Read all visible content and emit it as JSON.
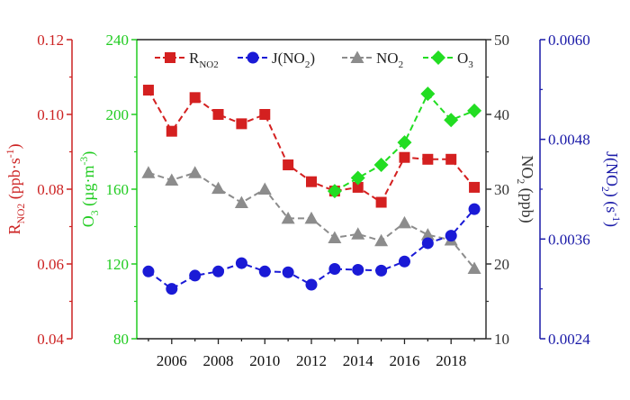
{
  "chart_data": {
    "type": "line",
    "x": [
      2005,
      2006,
      2007,
      2008,
      2009,
      2010,
      2011,
      2012,
      2013,
      2014,
      2015,
      2016,
      2017,
      2018,
      2019
    ],
    "xlim": [
      2004.5,
      2019.5
    ],
    "xticks": [
      "2006",
      "2008",
      "2010",
      "2012",
      "2014",
      "2016",
      "2018"
    ],
    "grid": false,
    "legend_position": "top",
    "axes": [
      {
        "id": "rno2",
        "label_main": "R",
        "label_sub": "NO2",
        "label_unit": " (ppb·s",
        "label_sup": "-1",
        "label_close": ")",
        "ylim": [
          0.04,
          0.12
        ],
        "ticks": [
          "0.04",
          "0.06",
          "0.08",
          "0.10",
          "0.12"
        ],
        "color": "#cc2222"
      },
      {
        "id": "o3",
        "label_main": "O",
        "label_sub": "3",
        "label_unit": " (µg·m",
        "label_sup": "-3",
        "label_close": ")",
        "ylim": [
          80,
          240
        ],
        "ticks": [
          "80",
          "120",
          "160",
          "200",
          "240"
        ],
        "color": "#22cc22"
      },
      {
        "id": "no2",
        "label_main": "NO",
        "label_sub": "2",
        "label_unit": " (ppb)",
        "label_sup": "",
        "label_close": "",
        "ylim": [
          10,
          50
        ],
        "ticks": [
          "10",
          "20",
          "30",
          "40",
          "50"
        ],
        "color": "#333333"
      },
      {
        "id": "jno2",
        "label_main": "J(NO",
        "label_sub": "2",
        "label_unit": ") (s",
        "label_sup": "-1",
        "label_close": ")",
        "ylim": [
          0.0024,
          0.006
        ],
        "ticks": [
          "0.0024",
          "0.0036",
          "0.0048",
          "0.0060"
        ],
        "color": "#1a1aa8"
      }
    ],
    "series": [
      {
        "name_main": "R",
        "name_sub": "NO2",
        "name_close": "",
        "axis": "rno2",
        "color": "#d42020",
        "marker": "square",
        "x": [
          2005,
          2006,
          2007,
          2008,
          2009,
          2010,
          2011,
          2012,
          2013,
          2014,
          2015,
          2016,
          2017,
          2018,
          2019
        ],
        "values": [
          0.1065,
          0.0955,
          0.1045,
          0.1,
          0.0975,
          0.1,
          0.0865,
          0.082,
          0.0795,
          0.0805,
          0.0765,
          0.0885,
          0.088,
          0.088,
          0.0805
        ]
      },
      {
        "name_main": "J(NO",
        "name_sub": "2",
        "name_close": ")",
        "axis": "jno2",
        "color": "#1a1ad6",
        "marker": "circle",
        "x": [
          2005,
          2006,
          2007,
          2008,
          2009,
          2010,
          2011,
          2012,
          2013,
          2014,
          2015,
          2016,
          2017,
          2018,
          2019
        ],
        "values": [
          0.00321,
          0.003,
          0.00316,
          0.00321,
          0.00331,
          0.00321,
          0.0032,
          0.00305,
          0.00324,
          0.00323,
          0.00322,
          0.00333,
          0.00355,
          0.00364,
          0.00396
        ]
      },
      {
        "name_main": "NO",
        "name_sub": "2",
        "name_close": "",
        "axis": "no2",
        "color": "#8c8c8c",
        "marker": "triangle",
        "x": [
          2005,
          2006,
          2007,
          2008,
          2009,
          2010,
          2011,
          2012,
          2013,
          2014,
          2015,
          2016,
          2017,
          2018,
          2019
        ],
        "values": [
          32.2,
          31.2,
          32.2,
          30.1,
          28.2,
          30.0,
          26.1,
          26.1,
          23.5,
          24.0,
          23.1,
          25.5,
          23.9,
          23.2,
          19.4
        ]
      },
      {
        "name_main": "O",
        "name_sub": "3",
        "name_close": "",
        "axis": "o3",
        "color": "#22dd22",
        "marker": "diamond",
        "x": [
          2013,
          2014,
          2015,
          2016,
          2017,
          2018,
          2019
        ],
        "values": [
          159,
          166,
          173,
          185,
          211,
          197,
          202
        ]
      }
    ]
  }
}
